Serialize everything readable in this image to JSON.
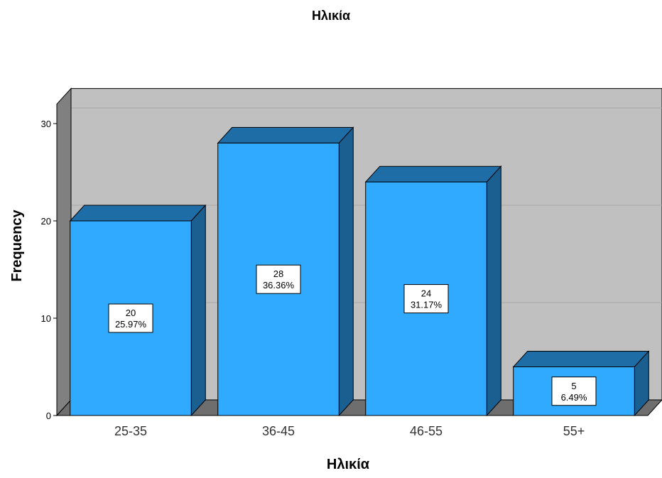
{
  "chart_data": {
    "type": "bar",
    "title": "Ηλικία",
    "xlabel": "Ηλικία",
    "ylabel": "Frequency",
    "categories": [
      "25-35",
      "36-45",
      "46-55",
      "55+"
    ],
    "values": [
      20,
      28,
      24,
      5
    ],
    "data_labels": [
      {
        "count": "20",
        "percent": "25.97%"
      },
      {
        "count": "28",
        "percent": "36.36%"
      },
      {
        "count": "24",
        "percent": "31.17%"
      },
      {
        "count": "5",
        "percent": "6.49%"
      }
    ],
    "y_ticks": [
      "0",
      "10",
      "20",
      "30"
    ],
    "ylim": [
      0,
      32
    ],
    "grid": true,
    "style": "3d",
    "colors": {
      "bar_front": "#30AAFF",
      "bar_top": "#1F6DA6",
      "bar_side": "#1B5E90",
      "back_wall": "#C0C0C0",
      "side_wall": "#808080",
      "floor": "#6E6E6E"
    }
  }
}
